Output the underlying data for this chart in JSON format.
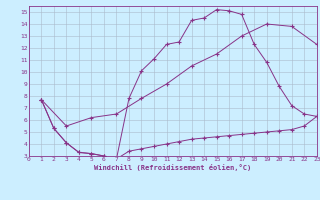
{
  "xlabel": "Windchill (Refroidissement éolien,°C)",
  "bg_color": "#cceeff",
  "grid_color": "#aabbcc",
  "line_color": "#883388",
  "xlim": [
    0,
    23
  ],
  "ylim": [
    3,
    15
  ],
  "xticks": [
    0,
    1,
    2,
    3,
    4,
    5,
    6,
    7,
    8,
    9,
    10,
    11,
    12,
    13,
    14,
    15,
    16,
    17,
    18,
    19,
    20,
    21,
    22,
    23
  ],
  "yticks": [
    3,
    4,
    5,
    6,
    7,
    8,
    9,
    10,
    11,
    12,
    13,
    14,
    15
  ],
  "curve1_x": [
    1,
    2,
    3,
    4,
    5,
    6,
    7,
    8,
    9,
    10,
    11,
    12,
    13,
    14,
    15,
    16,
    17,
    18,
    19,
    20,
    21,
    22,
    23
  ],
  "curve1_y": [
    7.7,
    5.3,
    4.1,
    3.3,
    3.2,
    3.0,
    2.75,
    7.8,
    10.1,
    11.1,
    12.3,
    12.5,
    14.3,
    14.5,
    15.2,
    15.1,
    14.8,
    12.3,
    10.8,
    8.8,
    7.2,
    6.5,
    6.3
  ],
  "curve2_x": [
    1,
    3,
    5,
    7,
    9,
    11,
    13,
    15,
    17,
    19,
    21,
    23
  ],
  "curve2_y": [
    7.7,
    5.5,
    6.2,
    6.5,
    7.8,
    9.0,
    10.5,
    11.5,
    13.0,
    14.0,
    13.8,
    12.3
  ],
  "curve3_x": [
    1,
    2,
    3,
    4,
    5,
    6,
    7,
    8,
    9,
    10,
    11,
    12,
    13,
    14,
    15,
    16,
    17,
    18,
    19,
    20,
    21,
    22,
    23
  ],
  "curve3_y": [
    7.7,
    5.3,
    4.1,
    3.3,
    3.2,
    3.0,
    2.75,
    3.4,
    3.6,
    3.8,
    4.0,
    4.2,
    4.4,
    4.5,
    4.6,
    4.7,
    4.8,
    4.9,
    5.0,
    5.1,
    5.2,
    5.5,
    6.3
  ]
}
